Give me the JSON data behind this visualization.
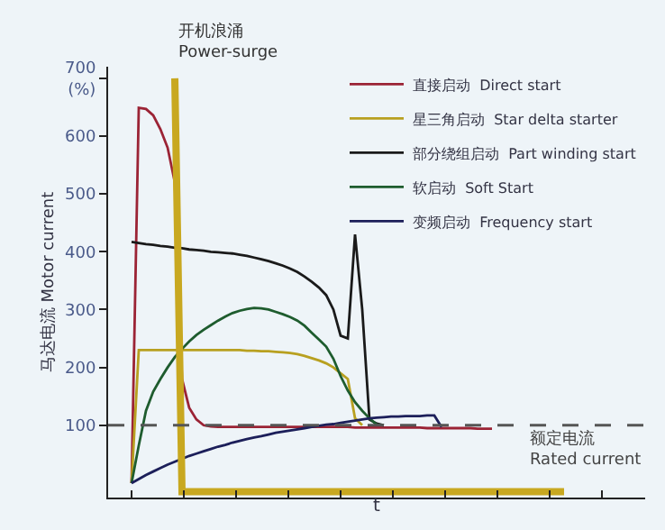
{
  "chart_data": {
    "type": "line",
    "ylabel": "马达电流 Motor current",
    "xlabel": "t",
    "categories": [
      null,
      null,
      null,
      null,
      null,
      null,
      null,
      null,
      null,
      null,
      null,
      null,
      null,
      null,
      null,
      null,
      null,
      null,
      null,
      null,
      null,
      null,
      null,
      null,
      null,
      null,
      null,
      null,
      null,
      null,
      null,
      null,
      null,
      null,
      null,
      null,
      null,
      null,
      null,
      null,
      null,
      null,
      null,
      null,
      null,
      null,
      null,
      null,
      null,
      null,
      null,
      null,
      null,
      null,
      null,
      null,
      null,
      null,
      null,
      null,
      null
    ],
    "ylim": [
      -25,
      720
    ],
    "yticks": [
      100,
      200,
      300,
      400,
      500,
      600,
      {
        "value": 700,
        "label": "700\n(%)"
      }
    ],
    "tick_labels": "y",
    "grid": false,
    "legend": "top right",
    "marker": "none",
    "line_style": "solid",
    "series": [
      {
        "name": "直接启动  Direct start",
        "color": "#9b2335",
        "values": [
          0,
          649,
          647,
          636,
          612,
          580,
          520,
          180,
          130,
          110,
          100,
          98,
          97,
          97,
          97,
          97,
          97,
          97,
          97,
          97,
          97,
          97,
          97,
          97,
          97,
          97,
          97,
          97,
          97,
          97,
          97,
          96,
          96,
          96,
          96,
          96,
          96,
          96,
          96,
          96,
          96,
          95,
          95,
          95,
          95,
          95,
          95,
          95,
          94,
          94,
          94,
          null,
          null,
          null,
          null,
          null,
          null,
          null,
          null,
          null,
          null
        ]
      },
      {
        "name": "星三角启动  Star delta starter",
        "color": "#b8a020",
        "values": [
          0,
          230,
          230,
          230,
          230,
          230,
          230,
          230,
          230,
          230,
          230,
          230,
          230,
          230,
          230,
          230,
          229,
          229,
          228,
          228,
          227,
          226,
          225,
          223,
          220,
          216,
          212,
          207,
          200,
          190,
          180,
          112,
          100,
          null,
          null,
          null,
          null,
          null,
          null,
          null,
          null,
          null,
          null,
          null,
          null,
          null,
          null,
          null,
          null,
          null,
          null,
          null,
          null,
          null,
          null,
          null,
          null,
          null,
          null,
          null,
          null
        ]
      },
      {
        "name": "部分绕组启动  Part winding start",
        "color": "#1a1a1a",
        "values": [
          417,
          415,
          413,
          412,
          410,
          409,
          407,
          406,
          404,
          403,
          402,
          400,
          399,
          398,
          397,
          395,
          393,
          390,
          387,
          384,
          380,
          376,
          371,
          365,
          357,
          348,
          338,
          325,
          300,
          255,
          250,
          430,
          300,
          110,
          103,
          100,
          null,
          null,
          null,
          null,
          null,
          null,
          null,
          null,
          null,
          null,
          null,
          null,
          null,
          null,
          null,
          null,
          null,
          null,
          null,
          null,
          null,
          null,
          null,
          null,
          null
        ]
      },
      {
        "name": "软启动  Soft Start",
        "color": "#1e5c2e",
        "values": [
          0,
          65,
          125,
          158,
          180,
          200,
          218,
          232,
          245,
          256,
          265,
          273,
          281,
          288,
          294,
          298,
          301,
          303,
          302,
          300,
          296,
          292,
          287,
          281,
          272,
          260,
          248,
          236,
          215,
          185,
          160,
          140,
          125,
          112,
          101,
          100,
          null,
          null,
          null,
          null,
          null,
          null,
          null,
          null,
          null,
          null,
          null,
          null,
          null,
          null,
          null,
          null,
          null,
          null,
          null,
          null,
          null,
          null,
          null,
          null,
          null
        ]
      },
      {
        "name": "变频启动  Frequency start",
        "color": "#1c1f5a",
        "values": [
          0,
          7,
          14,
          20,
          26,
          32,
          37,
          42,
          47,
          51,
          55,
          59,
          63,
          66,
          70,
          73,
          76,
          79,
          81,
          84,
          87,
          89,
          91,
          93,
          95,
          97,
          99,
          101,
          102,
          104,
          106,
          108,
          110,
          112,
          113,
          114,
          115,
          115,
          116,
          116,
          116,
          117,
          117,
          97,
          null,
          null,
          null,
          null,
          null,
          null,
          null,
          null,
          null,
          null,
          null,
          null,
          null,
          null,
          null,
          null,
          null
        ]
      },
      {
        "color": "#c8a820",
        "values": [
          null,
          null,
          null,
          null,
          null,
          null,
          700,
          -15,
          -15,
          -15,
          -15,
          -15,
          -15,
          -15,
          -15,
          -15,
          -15,
          -15,
          -15,
          -15,
          -15,
          -15,
          -15,
          -15,
          -15,
          -15,
          -15,
          -15,
          -15,
          -15,
          -15,
          -15,
          -15,
          -15,
          -15,
          -15,
          -15,
          -15,
          -15,
          -15,
          -15,
          -15,
          -15,
          -15,
          -15,
          -15,
          -15,
          -15,
          -15,
          -15,
          -15,
          -15,
          -15,
          -15,
          -15,
          -15,
          -15,
          -15,
          -15,
          -15,
          -15
        ]
      }
    ],
    "ref_lines": [
      {
        "axis": "y",
        "value": 100,
        "label": "额定电流\nRated current",
        "color": "#555555",
        "line_style": "dashed"
      }
    ],
    "annotations": [
      "开机浪涌\nPower-surge"
    ]
  }
}
